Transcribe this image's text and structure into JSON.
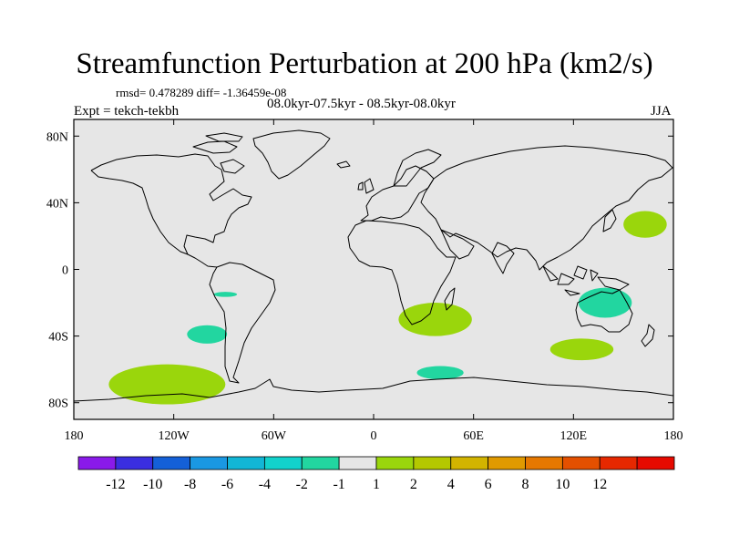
{
  "title": "Streamfunction Perturbation at 200 hPa (km2/s)",
  "stats_text": "rmsd= 0.478289 diff= -1.36459e-08",
  "experiment_text": "Expt = tekch-tekbh",
  "period_text": "08.0kyr-07.5kyr - 08.5kyr-08.0kyr",
  "season_text": "JJA",
  "colors": {
    "ocean_land_background": "#e6e6e6",
    "coastline": "#000000",
    "frame": "#000000"
  },
  "map": {
    "projection": "cylindrical-equidistant",
    "lon_range": [
      -180,
      180
    ],
    "lat_range": [
      -90,
      90
    ],
    "lon_ticks": [
      {
        "value": -180,
        "label": "180"
      },
      {
        "value": -120,
        "label": "120W"
      },
      {
        "value": -60,
        "label": "60W"
      },
      {
        "value": 0,
        "label": "0"
      },
      {
        "value": 60,
        "label": "60E"
      },
      {
        "value": 120,
        "label": "120E"
      },
      {
        "value": 180,
        "label": "180"
      }
    ],
    "lat_ticks": [
      {
        "value": 80,
        "label": "80N"
      },
      {
        "value": 40,
        "label": "40N"
      },
      {
        "value": 0,
        "label": "0"
      },
      {
        "value": -40,
        "label": "40S"
      },
      {
        "value": -80,
        "label": "80S"
      }
    ]
  },
  "anomaly_regions": [
    {
      "name": "anomaly-west-pacific-north",
      "sign": "positive",
      "center_lon": 163,
      "center_lat": 27,
      "lon_radius": 13,
      "lat_radius": 8,
      "color": "#9ad60c"
    },
    {
      "name": "anomaly-australia",
      "sign": "negative",
      "center_lon": 139,
      "center_lat": -20,
      "lon_radius": 16,
      "lat_radius": 9,
      "color": "#22d6a0"
    },
    {
      "name": "anomaly-south-indian-ocean",
      "sign": "positive",
      "center_lon": 125,
      "center_lat": -48,
      "lon_radius": 19,
      "lat_radius": 6.5,
      "color": "#9ad60c"
    },
    {
      "name": "anomaly-southern-africa",
      "sign": "positive",
      "center_lon": 37,
      "center_lat": -30,
      "lon_radius": 22,
      "lat_radius": 10,
      "color": "#9ad60c"
    },
    {
      "name": "anomaly-south-of-africa",
      "sign": "negative",
      "center_lon": 40,
      "center_lat": -62,
      "lon_radius": 14,
      "lat_radius": 4,
      "color": "#22d6a0"
    },
    {
      "name": "anomaly-east-pacific-small",
      "sign": "negative",
      "center_lon": -89,
      "center_lat": -15,
      "lon_radius": 7,
      "lat_radius": 1.5,
      "color": "#22d6a0"
    },
    {
      "name": "anomaly-southeast-pacific",
      "sign": "negative",
      "center_lon": -100,
      "center_lat": -39,
      "lon_radius": 12,
      "lat_radius": 5.5,
      "color": "#22d6a0"
    },
    {
      "name": "anomaly-amundsen-sea",
      "sign": "positive",
      "center_lon": -124,
      "center_lat": -69,
      "lon_radius": 35,
      "lat_radius": 12,
      "color": "#9ad60c"
    }
  ],
  "colorbar": {
    "colors": [
      "#8a1aea",
      "#3a2ee0",
      "#1460d8",
      "#1a98e2",
      "#12b6d6",
      "#12d2cc",
      "#22d6a0",
      "#e6e6e6",
      "#9ad60c",
      "#b4c800",
      "#d2b400",
      "#e09a00",
      "#e67800",
      "#e45000",
      "#e62800",
      "#e60a00"
    ],
    "labels": [
      "-12",
      "-10",
      "-8",
      "-6",
      "-4",
      "-2",
      "-1",
      "1",
      "2",
      "4",
      "6",
      "8",
      "10",
      "12"
    ]
  }
}
